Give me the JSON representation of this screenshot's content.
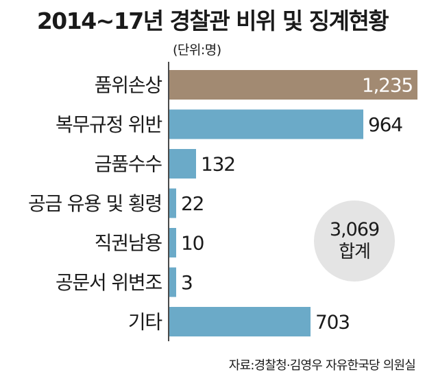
{
  "title": "2014~17년 경찰관 비위 및 징계현황",
  "unit": "(단위:명)",
  "source": "자료:경찰청·김영우 자유한국당 의원실",
  "total": {
    "value": "3,069",
    "label": "합계"
  },
  "colors": {
    "highlight": "#a28a72",
    "bar": "#6baac8",
    "axis": "#4a4a4a"
  },
  "chart_data": {
    "type": "bar",
    "orientation": "horizontal",
    "categories": [
      "품위손상",
      "복무규정 위반",
      "금품수수",
      "공금 유용 및 횡령",
      "직권남용",
      "공문서 위변조",
      "기타"
    ],
    "values": [
      1235,
      964,
      132,
      22,
      10,
      3,
      703
    ],
    "value_labels": [
      "1,235",
      "964",
      "132",
      "22",
      "10",
      "3",
      "703"
    ],
    "highlight_index": 0,
    "title": "2014~17년 경찰관 비위 및 징계현황",
    "xlabel": "",
    "ylabel": ""
  }
}
